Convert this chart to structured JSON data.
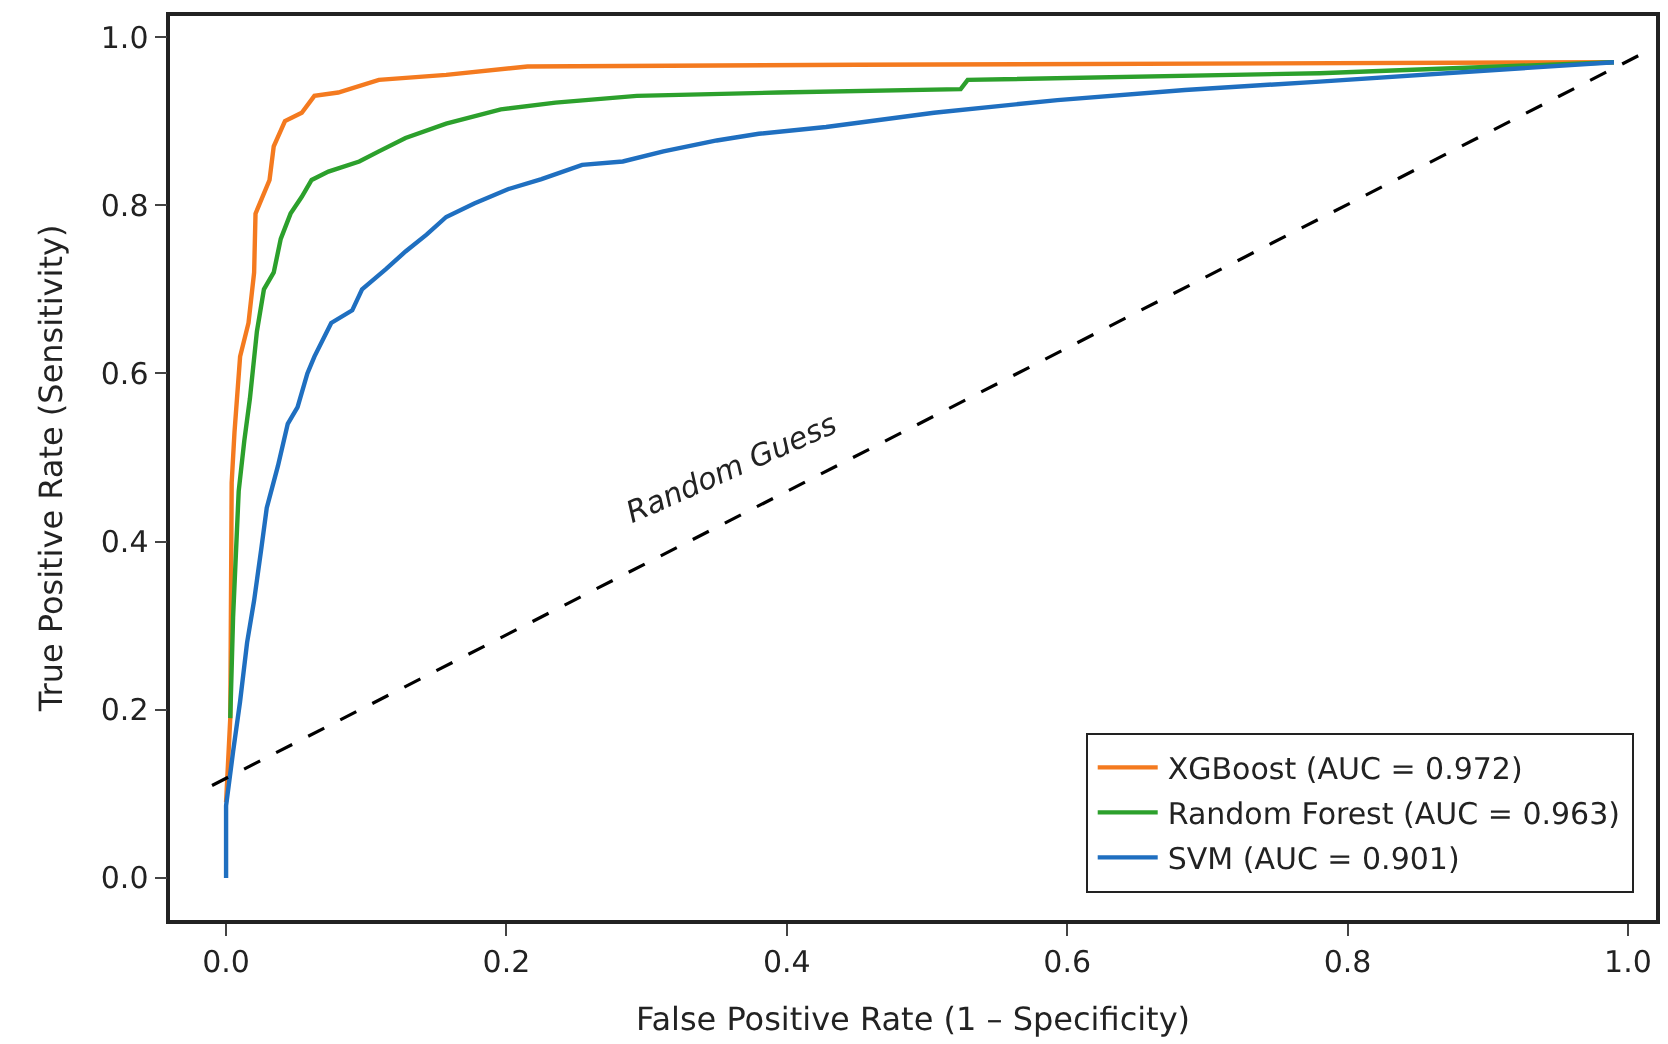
{
  "chart_data": {
    "type": "line",
    "xlabel": "False Positive Rate (1 – Specificity)",
    "ylabel": "True Positive Rate (Sensitivity)",
    "xlim": [
      -0.04,
      1.02
    ],
    "ylim": [
      -0.05,
      1.025
    ],
    "xticks": [
      {
        "value": 0,
        "label": "0.0"
      },
      0.2,
      0.4,
      0.6,
      0.8,
      {
        "value": 1,
        "label": "1.0"
      }
    ],
    "yticks": [
      {
        "value": 0,
        "label": "0.0"
      },
      0.2,
      0.4,
      0.6,
      0.8,
      {
        "value": 1,
        "label": "1.0"
      }
    ],
    "legend": "bottom right",
    "marker": "none",
    "line_style": "solid",
    "series": [
      {
        "name": "XGBoost (AUC = 0.972)",
        "color": "#f47a1f",
        "x": [
          0,
          0.003,
          0.004,
          0.006,
          0.01,
          0.016,
          0.02,
          0.021,
          0.031,
          0.034,
          0.042,
          0.054,
          0.063,
          0.08,
          0.109,
          0.157,
          0.215,
          0.45,
          0.99
        ],
        "values": [
          0.09,
          0.19,
          0.47,
          0.53,
          0.62,
          0.66,
          0.72,
          0.79,
          0.83,
          0.87,
          0.9,
          0.91,
          0.93,
          0.934,
          0.949,
          0.955,
          0.965,
          0.967,
          0.97
        ]
      },
      {
        "name": "Random Forest (AUC = 0.963)",
        "color": "#2ca02c",
        "x": [
          0.003,
          0.005,
          0.009,
          0.013,
          0.017,
          0.022,
          0.027,
          0.034,
          0.039,
          0.046,
          0.054,
          0.061,
          0.073,
          0.095,
          0.109,
          0.128,
          0.157,
          0.196,
          0.235,
          0.293,
          0.394,
          0.524,
          0.529,
          0.78,
          0.99
        ],
        "values": [
          0.19,
          0.31,
          0.46,
          0.52,
          0.57,
          0.65,
          0.7,
          0.72,
          0.76,
          0.79,
          0.81,
          0.83,
          0.84,
          0.852,
          0.864,
          0.88,
          0.897,
          0.914,
          0.922,
          0.93,
          0.934,
          0.938,
          0.949,
          0.957,
          0.97
        ]
      },
      {
        "name": "SVM (AUC = 0.901)",
        "color": "#1f6fc0",
        "x": [
          0,
          0,
          0.005,
          0.01,
          0.015,
          0.02,
          0.025,
          0.029,
          0.037,
          0.044,
          0.051,
          0.058,
          0.063,
          0.075,
          0.09,
          0.097,
          0.114,
          0.128,
          0.143,
          0.157,
          0.177,
          0.201,
          0.225,
          0.254,
          0.283,
          0.312,
          0.35,
          0.38,
          0.428,
          0.505,
          0.593,
          0.684,
          0.78,
          0.99
        ],
        "values": [
          0,
          0.086,
          0.15,
          0.21,
          0.28,
          0.33,
          0.39,
          0.44,
          0.49,
          0.54,
          0.56,
          0.6,
          0.62,
          0.66,
          0.675,
          0.7,
          0.724,
          0.745,
          0.765,
          0.786,
          0.802,
          0.819,
          0.831,
          0.848,
          0.852,
          0.864,
          0.877,
          0.885,
          0.893,
          0.91,
          0.925,
          0.937,
          0.947,
          0.97
        ]
      },
      {
        "type": "line",
        "color": "#000000",
        "line_style": "dashed",
        "x": [
          -0.01,
          1.01
        ],
        "values": [
          0.11,
          0.98
        ]
      }
    ],
    "annotations": [
      "Random Guess"
    ]
  }
}
